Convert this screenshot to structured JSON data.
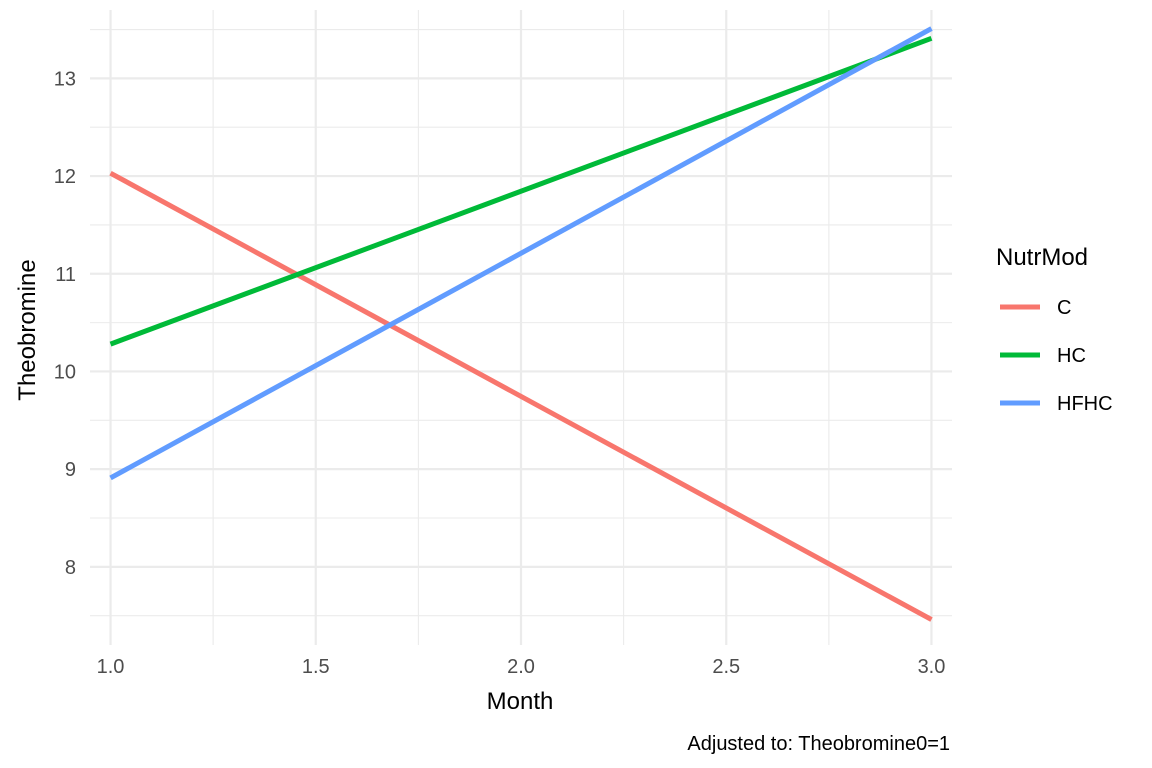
{
  "chart_data": {
    "type": "line",
    "title": "",
    "xlabel": "Month",
    "ylabel": "Theobromine",
    "caption": "Adjusted to: Theobromine0=1",
    "xlim": [
      0.95,
      3.05
    ],
    "ylim": [
      7.2,
      13.7
    ],
    "x_ticks": [
      1.0,
      1.5,
      2.0,
      2.5,
      3.0
    ],
    "x_tick_labels": [
      "1.0",
      "1.5",
      "2.0",
      "2.5",
      "3.0"
    ],
    "y_ticks": [
      8,
      9,
      10,
      11,
      12,
      13
    ],
    "y_tick_labels": [
      "8",
      "9",
      "10",
      "11",
      "12",
      "13"
    ],
    "grid": true,
    "legend": {
      "title": "NutrMod",
      "position": "right"
    },
    "series": [
      {
        "name": "C",
        "color": "#F8766D",
        "x": [
          1.0,
          3.0
        ],
        "y": [
          12.03,
          7.46
        ]
      },
      {
        "name": "HC",
        "color": "#00BA38",
        "x": [
          1.0,
          3.0
        ],
        "y": [
          10.28,
          13.41
        ]
      },
      {
        "name": "HFHC",
        "color": "#619CFF",
        "x": [
          1.0,
          3.0
        ],
        "y": [
          8.91,
          13.51
        ]
      }
    ]
  }
}
